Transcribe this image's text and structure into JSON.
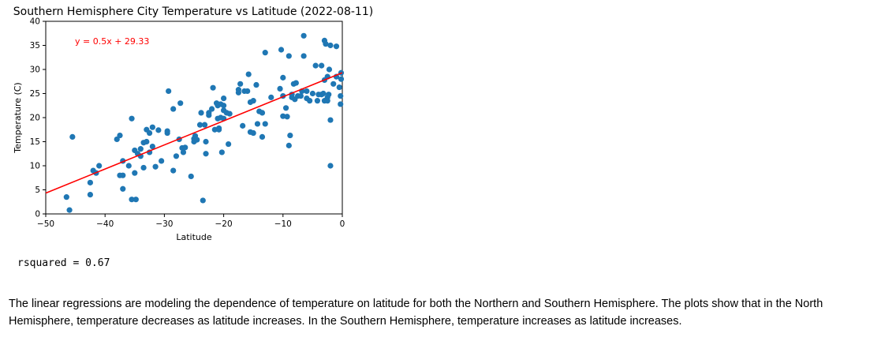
{
  "chart_data": {
    "type": "scatter",
    "title": "Southern Hemisphere City Temperature vs Latitude (2022-08-11)",
    "xlabel": "Latitude",
    "ylabel": "Temperature (C)",
    "xlim": [
      -50,
      0
    ],
    "ylim": [
      0,
      40
    ],
    "xticks": [
      -50,
      -40,
      -30,
      -20,
      -10,
      0
    ],
    "yticks": [
      0,
      5,
      10,
      15,
      20,
      25,
      30,
      35,
      40
    ],
    "grid": false,
    "point_color": "#1f77b4",
    "line_color": "#ff0000",
    "regression": {
      "slope": 0.5,
      "intercept": 29.33,
      "equation": "y = 0.5x + 29.33"
    },
    "points": [
      [
        -46,
        0.8
      ],
      [
        -46.5,
        3.5
      ],
      [
        -45.5,
        16
      ],
      [
        -42.5,
        6.5
      ],
      [
        -42.5,
        4
      ],
      [
        -42,
        9
      ],
      [
        -41.5,
        8.5
      ],
      [
        -41,
        10
      ],
      [
        -38,
        15.5
      ],
      [
        -37.5,
        16.3
      ],
      [
        -37.5,
        8
      ],
      [
        -37,
        11
      ],
      [
        -37,
        8
      ],
      [
        -37,
        5.2
      ],
      [
        -36,
        10
      ],
      [
        -35.5,
        19.8
      ],
      [
        -35.5,
        3
      ],
      [
        -35,
        13.2
      ],
      [
        -35,
        8.5
      ],
      [
        -34.8,
        3
      ],
      [
        -34.5,
        12.5
      ],
      [
        -34,
        13.5
      ],
      [
        -34,
        12
      ],
      [
        -33.5,
        14.8
      ],
      [
        -33.5,
        9.6
      ],
      [
        -33,
        17.5
      ],
      [
        -33,
        15
      ],
      [
        -32.5,
        16.8
      ],
      [
        -32.5,
        12.8
      ],
      [
        -32,
        18
      ],
      [
        -32,
        14
      ],
      [
        -31.5,
        9.8
      ],
      [
        -31,
        17.4
      ],
      [
        -30.5,
        11
      ],
      [
        -29.5,
        17.2
      ],
      [
        -29.5,
        16.8
      ],
      [
        -29.3,
        25.5
      ],
      [
        -28.5,
        21.8
      ],
      [
        -28.5,
        9
      ],
      [
        -28,
        12
      ],
      [
        -27.5,
        15.5
      ],
      [
        -27.3,
        23
      ],
      [
        -27,
        13.7
      ],
      [
        -26.8,
        12.8
      ],
      [
        -26.5,
        13.8
      ],
      [
        -25.5,
        7.8
      ],
      [
        -25,
        15.6
      ],
      [
        -25,
        15
      ],
      [
        -24.8,
        16.2
      ],
      [
        -24.5,
        15.4
      ],
      [
        -24,
        18.5
      ],
      [
        -23.8,
        21
      ],
      [
        -23.5,
        2.8
      ],
      [
        -23.2,
        18.5
      ],
      [
        -23,
        15
      ],
      [
        -23,
        12.5
      ],
      [
        -22.5,
        21
      ],
      [
        -22.5,
        20.5
      ],
      [
        -22,
        21.8
      ],
      [
        -21.8,
        26.2
      ],
      [
        -21.5,
        17.5
      ],
      [
        -21.2,
        23
      ],
      [
        -21,
        22.5
      ],
      [
        -21,
        19.8
      ],
      [
        -20.8,
        17.8
      ],
      [
        -20.8,
        17.5
      ],
      [
        -20.5,
        22.8
      ],
      [
        -20.5,
        20
      ],
      [
        -20.3,
        12.8
      ],
      [
        -20,
        24
      ],
      [
        -20,
        22.5
      ],
      [
        -20,
        21.5
      ],
      [
        -20,
        19.8
      ],
      [
        -19.5,
        21
      ],
      [
        -19.2,
        14.5
      ],
      [
        -19,
        20.8
      ],
      [
        -17.5,
        25.2
      ],
      [
        -17.5,
        25.8
      ],
      [
        -17.2,
        27
      ],
      [
        -16.8,
        18.3
      ],
      [
        -16.5,
        25.5
      ],
      [
        -16,
        25.5
      ],
      [
        -15.8,
        29
      ],
      [
        -15.5,
        23.2
      ],
      [
        -15.5,
        17
      ],
      [
        -15,
        23.5
      ],
      [
        -15,
        16.8
      ],
      [
        -14.5,
        26.8
      ],
      [
        -14.3,
        18.7
      ],
      [
        -14,
        21.3
      ],
      [
        -13.5,
        21
      ],
      [
        -13.5,
        16
      ],
      [
        -13,
        18.7
      ],
      [
        -13,
        33.5
      ],
      [
        -12,
        24.2
      ],
      [
        -10.5,
        26
      ],
      [
        -10.3,
        34.1
      ],
      [
        -10,
        24.5
      ],
      [
        -10,
        20.3
      ],
      [
        -10,
        28.3
      ],
      [
        -9.5,
        22
      ],
      [
        -9.3,
        20.2
      ],
      [
        -9,
        32.8
      ],
      [
        -9,
        14.2
      ],
      [
        -8.8,
        16.3
      ],
      [
        -8.5,
        24.2
      ],
      [
        -8.5,
        24.8
      ],
      [
        -8.2,
        27
      ],
      [
        -8,
        23.8
      ],
      [
        -7.8,
        27.2
      ],
      [
        -7.5,
        24.5
      ],
      [
        -7,
        24.5
      ],
      [
        -6.8,
        25.5
      ],
      [
        -6.5,
        37
      ],
      [
        -6.5,
        32.8
      ],
      [
        -6,
        25.5
      ],
      [
        -6,
        24
      ],
      [
        -5.5,
        23.5
      ],
      [
        -5,
        25
      ],
      [
        -4.5,
        30.8
      ],
      [
        -4.2,
        23.5
      ],
      [
        -4,
        24.8
      ],
      [
        -3.5,
        30.8
      ],
      [
        -3.5,
        24.8
      ],
      [
        -3.2,
        25
      ],
      [
        -3,
        36
      ],
      [
        -3,
        27.8
      ],
      [
        -3,
        23.5
      ],
      [
        -2.8,
        35.3
      ],
      [
        -2.5,
        28.5
      ],
      [
        -2.5,
        24.2
      ],
      [
        -2.5,
        23.5
      ],
      [
        -2.3,
        24.8
      ],
      [
        -2.2,
        30
      ],
      [
        -2,
        10
      ],
      [
        -2,
        19.5
      ],
      [
        -2,
        35
      ],
      [
        -1.5,
        27
      ],
      [
        -1,
        28.5
      ],
      [
        -1,
        34.8
      ],
      [
        -0.5,
        26.3
      ],
      [
        -0.3,
        24.5
      ],
      [
        -0.3,
        22.8
      ],
      [
        -0.2,
        28
      ],
      [
        -0.2,
        29.3
      ]
    ]
  },
  "output": {
    "rsquared_line": "rsquared = 0.67"
  },
  "text": {
    "paragraph": "The linear regressions are modeling the dependence of temperature on latitude for both the Northern and Southern Hemisphere. The plots show that in the North Hemisphere, temperature decreases as latitude increases. In the Southern Hemisphere, temperature increases as latitude increases."
  }
}
